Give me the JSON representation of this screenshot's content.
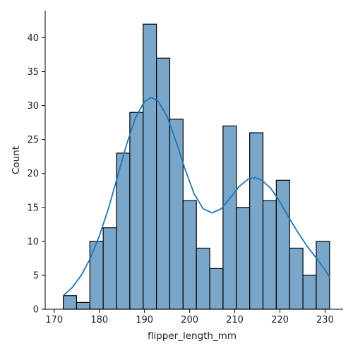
{
  "chart_data": {
    "type": "bar",
    "subtype": "histogram",
    "xlabel": "flipper_length_mm",
    "ylabel": "Count",
    "xlim": [
      168.0,
      234.0
    ],
    "ylim": [
      0,
      44.0
    ],
    "x_ticks": [
      170,
      180,
      190,
      200,
      210,
      220,
      230
    ],
    "y_ticks": [
      0,
      5,
      10,
      15,
      20,
      25,
      30,
      35,
      40
    ],
    "bin_edges": [
      172.0,
      174.95,
      177.9,
      180.85,
      183.8,
      186.75,
      189.7,
      192.65,
      195.6,
      198.55,
      201.5,
      204.45,
      207.4,
      210.35,
      213.3,
      216.25,
      219.2,
      222.15,
      225.1,
      228.05,
      231.0
    ],
    "counts": [
      2,
      1,
      10,
      12,
      23,
      29,
      42,
      37,
      28,
      16,
      9,
      6,
      27,
      15,
      26,
      16,
      19,
      9,
      5,
      10
    ],
    "kde_curve": {
      "x": [
        172,
        174,
        176,
        178,
        180,
        182,
        184,
        186,
        188,
        190,
        191.5,
        193,
        195,
        197,
        199,
        201,
        203,
        205,
        207,
        209,
        211,
        213,
        214.5,
        216,
        218,
        220,
        222,
        224,
        226,
        228,
        230,
        231
      ],
      "y": [
        2.0,
        3.2,
        5.0,
        7.5,
        10.8,
        14.8,
        19.5,
        24.2,
        28.2,
        30.6,
        31.2,
        30.7,
        28.4,
        24.7,
        20.6,
        17.0,
        14.8,
        14.2,
        14.8,
        16.4,
        18.1,
        19.2,
        19.4,
        19.0,
        17.8,
        15.8,
        13.5,
        11.3,
        9.3,
        7.6,
        5.8,
        4.7
      ]
    },
    "bar_color": "#7aa6ca",
    "line_color": "#1f77b4",
    "grid": false,
    "legend": "none"
  }
}
